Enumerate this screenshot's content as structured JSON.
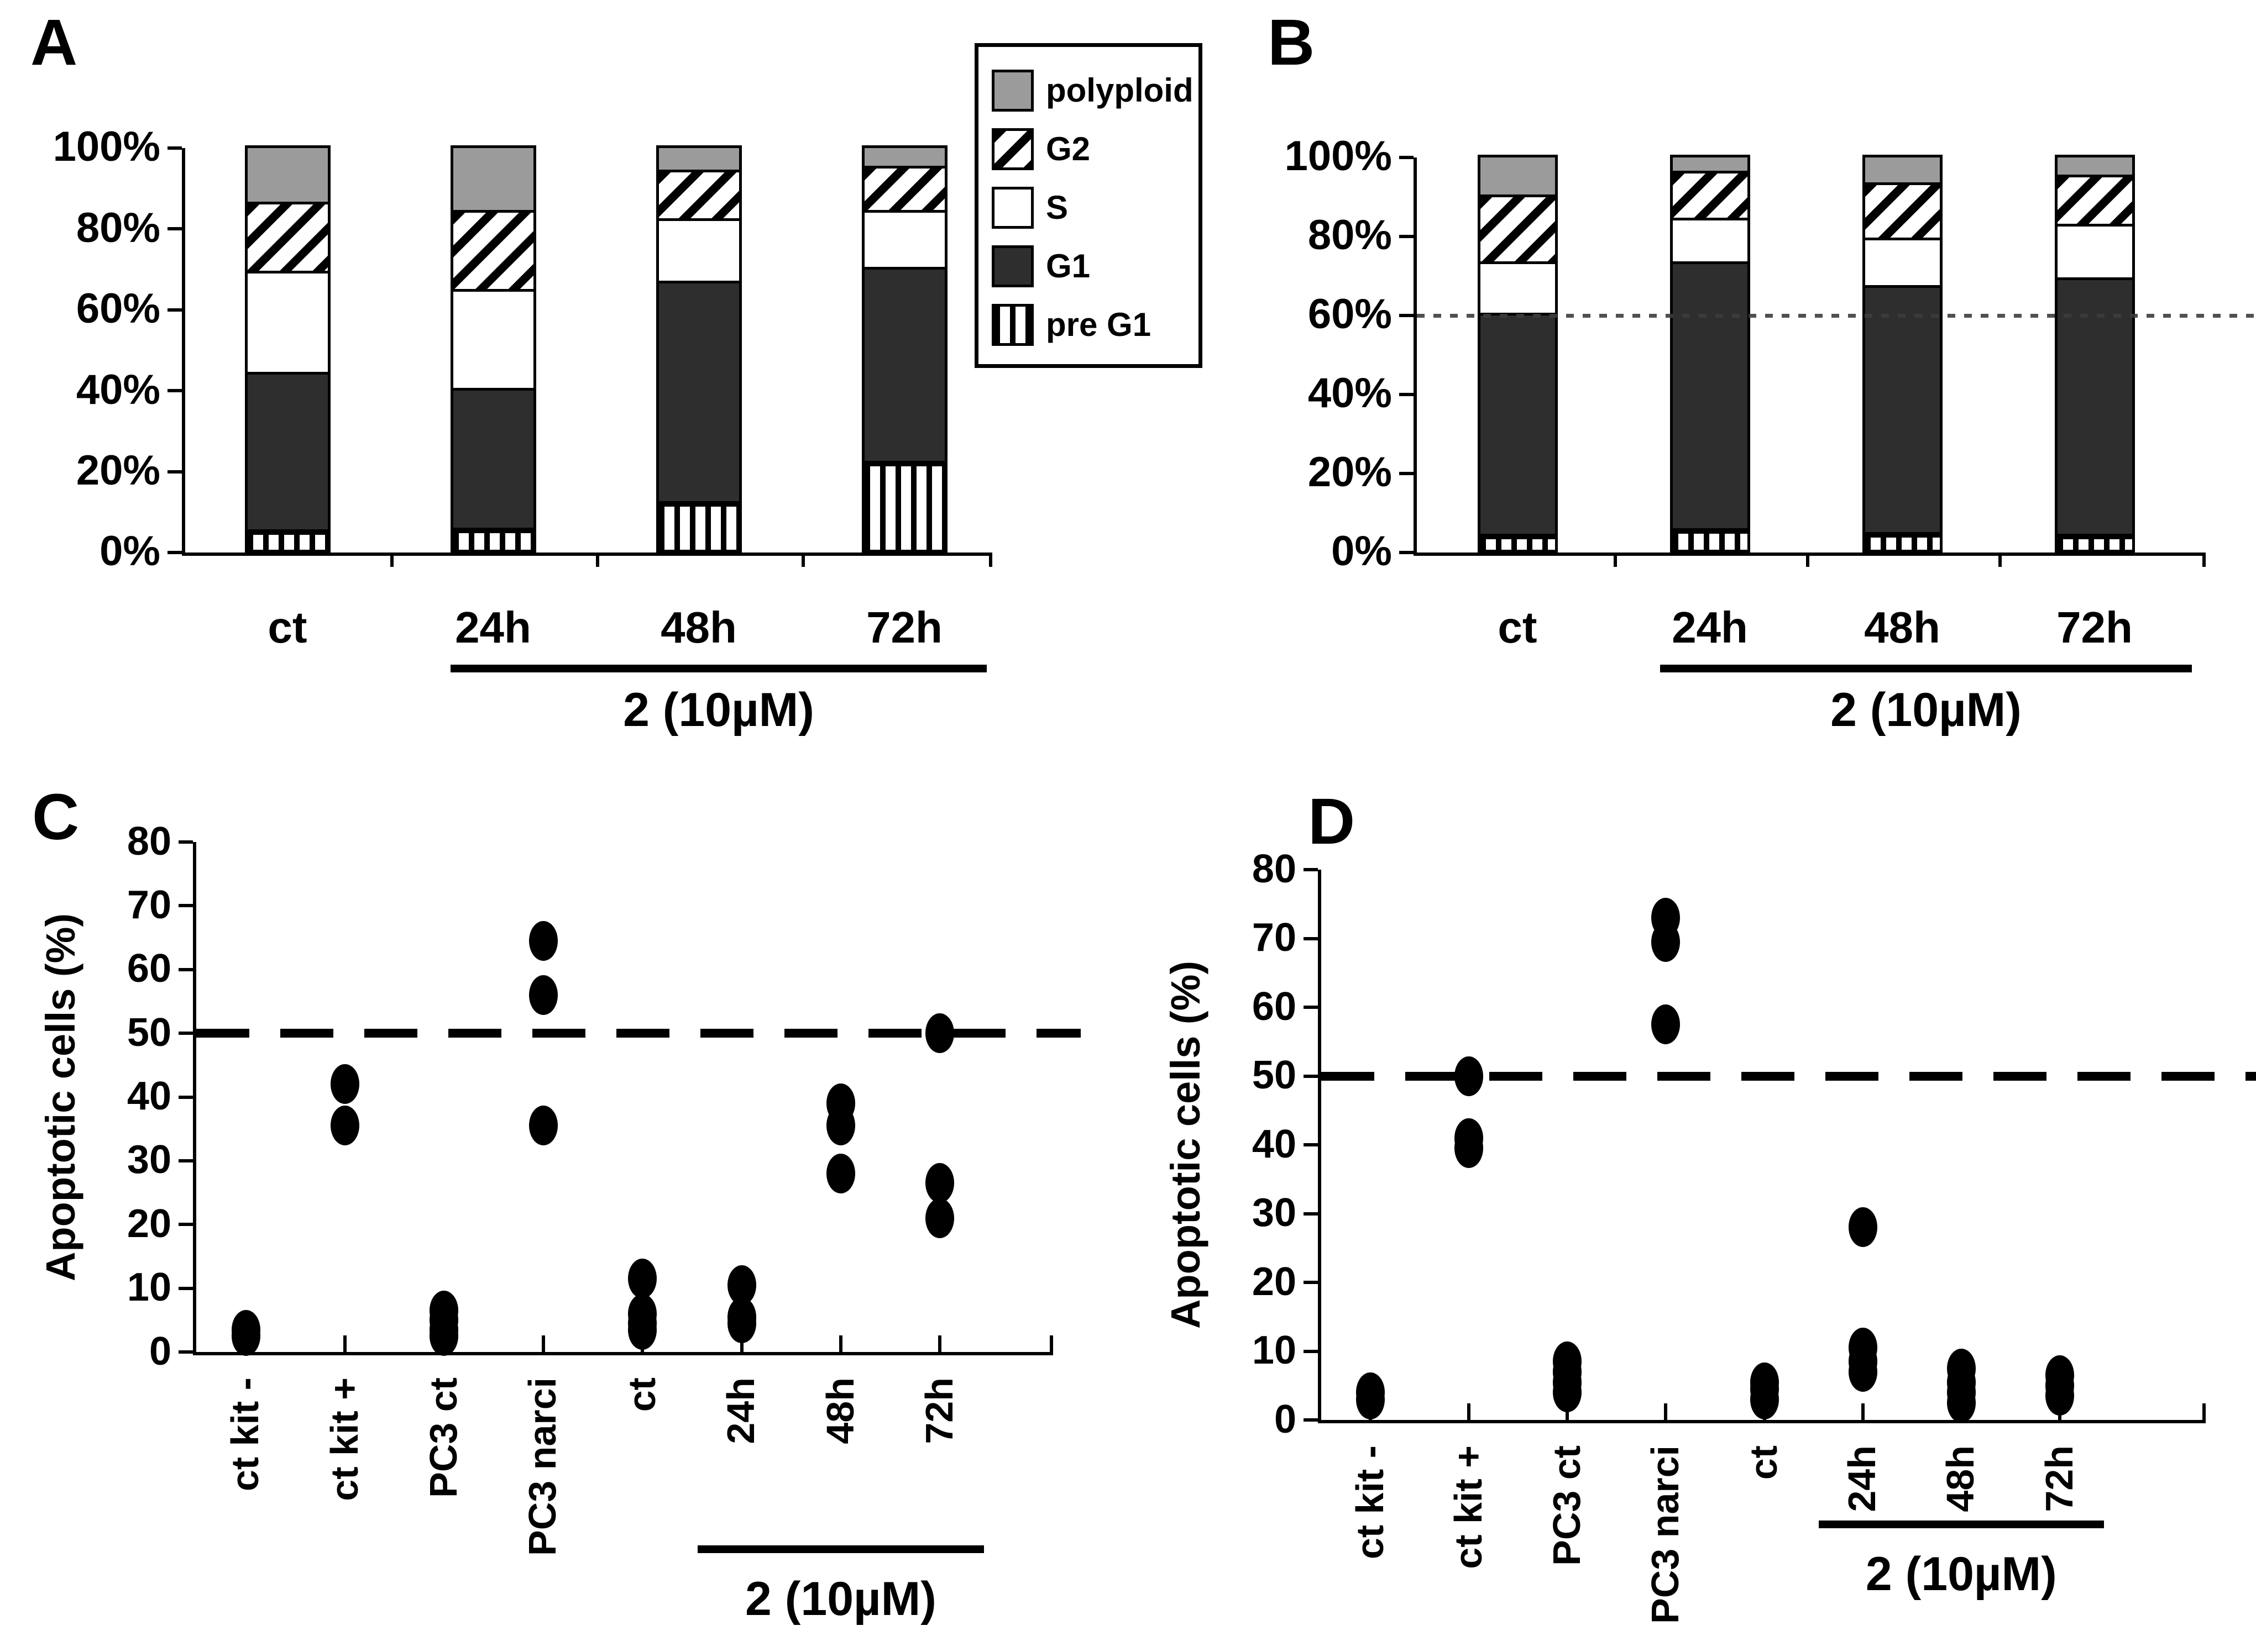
{
  "figure": {
    "panels": [
      {
        "letter": "A"
      },
      {
        "letter": "B"
      },
      {
        "letter": "C"
      },
      {
        "letter": "D"
      }
    ]
  },
  "legend": {
    "items": [
      {
        "label": "polyploid",
        "pattern": "gray"
      },
      {
        "label": "G2",
        "pattern": "diag"
      },
      {
        "label": "S",
        "pattern": "white"
      },
      {
        "label": "G1",
        "pattern": "dark"
      },
      {
        "label": "pre G1",
        "pattern": "vstripe"
      }
    ]
  },
  "colors": {
    "g1_dark": "#2e2e2e",
    "polyploid_gray": "#9b9b9b",
    "axis_black": "#000000",
    "background": "#ffffff"
  },
  "chart_data": [
    {
      "id": "A",
      "type": "bar",
      "subtype": "stacked_percent",
      "categories": [
        "ct",
        "24h",
        "48h",
        "72h"
      ],
      "series": [
        {
          "name": "pre G1",
          "pattern": "vstripe",
          "values": [
            5,
            5.5,
            12,
            22
          ]
        },
        {
          "name": "G1",
          "pattern": "dark",
          "values": [
            39,
            34.5,
            54.5,
            48
          ]
        },
        {
          "name": "S",
          "pattern": "white",
          "values": [
            25,
            24.5,
            15.5,
            14
          ]
        },
        {
          "name": "G2",
          "pattern": "diag",
          "values": [
            17,
            19.5,
            12,
            11
          ]
        },
        {
          "name": "polyploid",
          "pattern": "gray",
          "values": [
            14,
            16,
            6,
            5
          ]
        }
      ],
      "ylim": [
        0,
        100
      ],
      "ytick_step": 20,
      "ytick_suffix": "%",
      "grid": false,
      "group_label": {
        "text": "2 (10µM)",
        "from": 1,
        "to": 3
      }
    },
    {
      "id": "B",
      "type": "bar",
      "subtype": "stacked_percent",
      "categories": [
        "ct",
        "24h",
        "48h",
        "72h"
      ],
      "series": [
        {
          "name": "pre G1",
          "pattern": "vstripe",
          "values": [
            4,
            5.5,
            4.5,
            4
          ]
        },
        {
          "name": "G1",
          "pattern": "dark",
          "values": [
            56,
            67.5,
            62.5,
            65
          ]
        },
        {
          "name": "S",
          "pattern": "white",
          "values": [
            13,
            11,
            12,
            13.5
          ]
        },
        {
          "name": "G2",
          "pattern": "diag",
          "values": [
            17,
            12,
            14,
            12.5
          ]
        },
        {
          "name": "polyploid",
          "pattern": "gray",
          "values": [
            10,
            4,
            7,
            5
          ]
        }
      ],
      "ylim": [
        0,
        100
      ],
      "ytick_step": 20,
      "ytick_suffix": "%",
      "grid": false,
      "ref_line": {
        "value": 60,
        "style": "dotted"
      },
      "group_label": {
        "text": "2 (10µM)",
        "from": 1,
        "to": 3
      }
    },
    {
      "id": "C",
      "type": "scatter",
      "ylabel": "Apoptotic cells (%)",
      "categories": [
        "ct kit -",
        "ct kit +",
        "PC3 ct",
        "PC3 narci",
        "ct",
        "24h",
        "48h",
        "72h"
      ],
      "points": [
        [
          3.5,
          2.5
        ],
        [
          42,
          35.5
        ],
        [
          6.5,
          5,
          3.5,
          2.5
        ],
        [
          64.5,
          56,
          35.5
        ],
        [
          11.5,
          6,
          4.5,
          3.5
        ],
        [
          10.5,
          5.5,
          4.5
        ],
        [
          39,
          35.5,
          28
        ],
        [
          50,
          26.5,
          21
        ]
      ],
      "ylim": [
        0,
        80
      ],
      "ytick_step": 10,
      "ytick_suffix": "",
      "grid": false,
      "ref_line": {
        "value": 50,
        "style": "dashed"
      },
      "group_label": {
        "text": "2 (10µM)",
        "from": 5,
        "to": 7
      }
    },
    {
      "id": "D",
      "type": "scatter",
      "ylabel": "Apoptotic cells (%)",
      "categories": [
        "ct kit -",
        "ct kit +",
        "PC3 ct",
        "PC3 narci",
        "ct",
        "24h",
        "48h",
        "72h"
      ],
      "points": [
        [
          4,
          3
        ],
        [
          50,
          41,
          39.5
        ],
        [
          8.5,
          7,
          5.5,
          4
        ],
        [
          73,
          69.5,
          57.5
        ],
        [
          5.5,
          4.5,
          3
        ],
        [
          28,
          10.5,
          8.5,
          7
        ],
        [
          7.5,
          5.5,
          4,
          2.5
        ],
        [
          6.5,
          5,
          3.5
        ]
      ],
      "ylim": [
        0,
        80
      ],
      "ytick_step": 10,
      "ytick_suffix": "",
      "grid": false,
      "ref_line": {
        "value": 50,
        "style": "dashed"
      },
      "group_label": {
        "text": "2 (10µM)",
        "from": 5,
        "to": 7
      }
    }
  ]
}
